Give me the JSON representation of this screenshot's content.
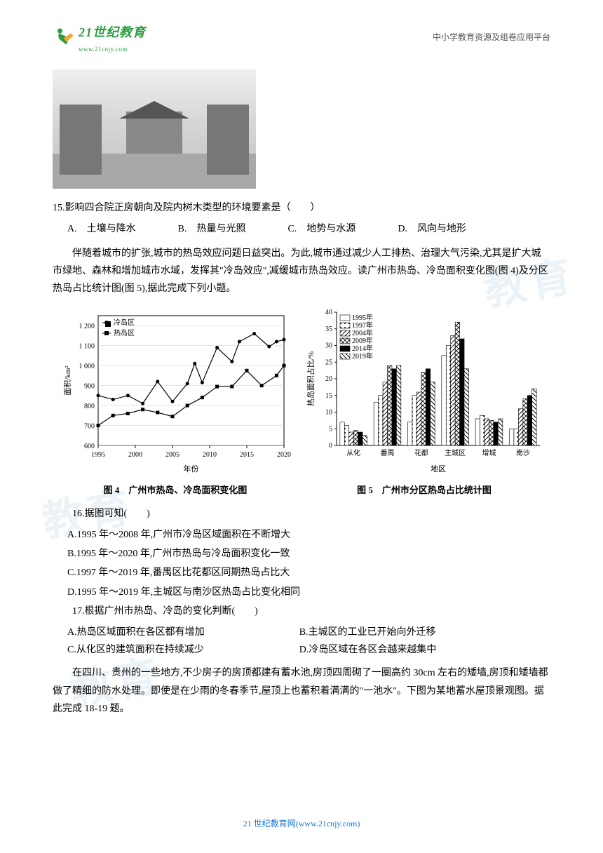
{
  "header": {
    "logo_cn": "21世纪教育",
    "logo_url": "www.21cnjy.com",
    "right_text": "中小学教育资源及组卷应用平台"
  },
  "q15": {
    "number": "15.",
    "stem": "影响四合院正房朝向及院内树木类型的环境要素是（　　）",
    "options": {
      "A": "土壤与降水",
      "B": "热量与光照",
      "C": "地势与水源",
      "D": "风向与地形"
    }
  },
  "passage1": "伴随着城市的扩张,城市的热岛效应问题日益突出。为此,城市通过减少人工排热、治理大气污染,尤其是扩大城市绿地、森林和增加城市水域，发挥其\"冷岛效应\",减缓城市热岛效应。读广州市热岛、冷岛面积变化图(图 4)及分区热岛占比统计图(图 5),据此完成下列小题。",
  "chart_left": {
    "type": "line",
    "title": "图 4　广州市热岛、冷岛面积变化图",
    "xlabel": "年份",
    "ylabel": "面积/km²",
    "xlim": [
      1995,
      2020
    ],
    "ylim": [
      600,
      1250
    ],
    "xticks": [
      1995,
      2000,
      2005,
      2010,
      2015,
      2020
    ],
    "yticks": [
      600,
      700,
      800,
      900,
      1000,
      1100,
      1200
    ],
    "grid_color": "#cccccc",
    "background_color": "#ffffff",
    "legend": [
      "冷岛区",
      "热岛区"
    ],
    "series": {
      "cold": {
        "marker": "circle",
        "color": "#000000",
        "x": [
          1995,
          1997,
          1999,
          2001,
          2003,
          2005,
          2007,
          2008,
          2009,
          2011,
          2013,
          2014,
          2016,
          2018,
          2019,
          2020
        ],
        "y": [
          850,
          830,
          850,
          810,
          920,
          820,
          910,
          1010,
          915,
          1090,
          1020,
          1120,
          1160,
          1095,
          1120,
          1130
        ]
      },
      "hot": {
        "marker": "square",
        "color": "#000000",
        "x": [
          1995,
          1997,
          1999,
          2001,
          2003,
          2005,
          2007,
          2009,
          2011,
          2013,
          2015,
          2017,
          2019,
          2020
        ],
        "y": [
          700,
          750,
          760,
          780,
          765,
          745,
          800,
          840,
          895,
          895,
          975,
          900,
          950,
          1000
        ]
      }
    }
  },
  "chart_right": {
    "type": "grouped-bar",
    "title": "图 5　广州市分区热岛占比统计图",
    "xlabel": "地区",
    "ylabel": "热岛面积占比/%",
    "ylim": [
      0,
      40
    ],
    "yticks": [
      0,
      5,
      10,
      15,
      20,
      25,
      30,
      35,
      40
    ],
    "categories": [
      "从化",
      "番禺",
      "花都",
      "主城区",
      "增城",
      "南沙"
    ],
    "years": [
      "1995年",
      "1997年",
      "2004年",
      "2009年",
      "2014年",
      "2019年"
    ],
    "patterns": [
      "white",
      "dots",
      "diag-left",
      "diag-cross",
      "black",
      "diag-right"
    ],
    "data": {
      "从化": [
        7,
        6,
        4,
        4.5,
        4,
        3
      ],
      "番禺": [
        13,
        15,
        19,
        24,
        23,
        24
      ],
      "花都": [
        7,
        15,
        16,
        22,
        23,
        19
      ],
      "主城区": [
        27,
        30,
        33,
        37,
        32,
        23
      ],
      "增城": [
        8,
        9,
        8,
        7.5,
        7,
        8
      ],
      "南沙": [
        5,
        5,
        11,
        14,
        15,
        17
      ]
    }
  },
  "q16": {
    "number": "16.",
    "stem": "据图可知(　　)",
    "options": {
      "A": "1995 年～2008 年,广州市冷岛区域面积在不断增大",
      "B": "1995 年～2020 年,广州市热岛与冷岛面积变化一致",
      "C": "1997 年～2019 年,番禺区比花都区同期热岛占比大",
      "D": "1995 年～2019 年,主城区与南沙区热岛占比变化相同"
    }
  },
  "q17": {
    "number": "17.",
    "stem": "根据广州市热岛、冷岛的变化判断(　　)",
    "options": {
      "A": "热岛区域面积在各区都有增加",
      "B": "主城区的工业已开始向外迁移",
      "C": "从化区的建筑面积在持续减少",
      "D": "冷岛区域在各区会越来越集中"
    }
  },
  "passage2": "在四川、贵州的一些地方,不少房子的房顶都建有蓄水池,房顶四周砌了一圈高约 30cm 左右的矮墙,房顶和矮墙都做了精细的防水处理。即使是在少雨的冬春季节,屋顶上也蓄积着满满的\"一池水\"。下图为某地蓄水屋顶景观图。据此完成 18-19 题。",
  "footer": {
    "text": "21 世纪教育网(www.21cnjy.com)"
  },
  "watermark_text": "教育"
}
